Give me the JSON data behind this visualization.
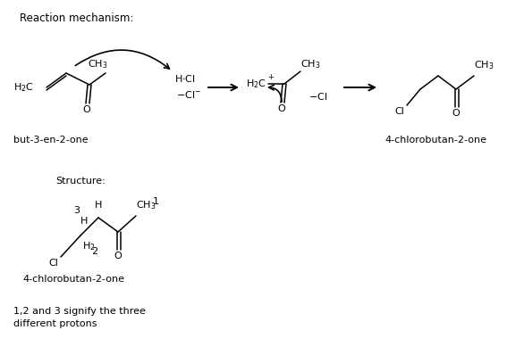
{
  "title": "Reaction mechanism:",
  "bg": "#ffffff",
  "fg": "#000000",
  "fs": 8.0,
  "name1": "but-3-en-2-one",
  "name2": "4-chlorobutan-2-one",
  "struct_label": "Structure:",
  "struct_name": "4-chlorobutan-2-one",
  "bottom1": "1,2 and 3 signify the three",
  "bottom2": "different protons"
}
